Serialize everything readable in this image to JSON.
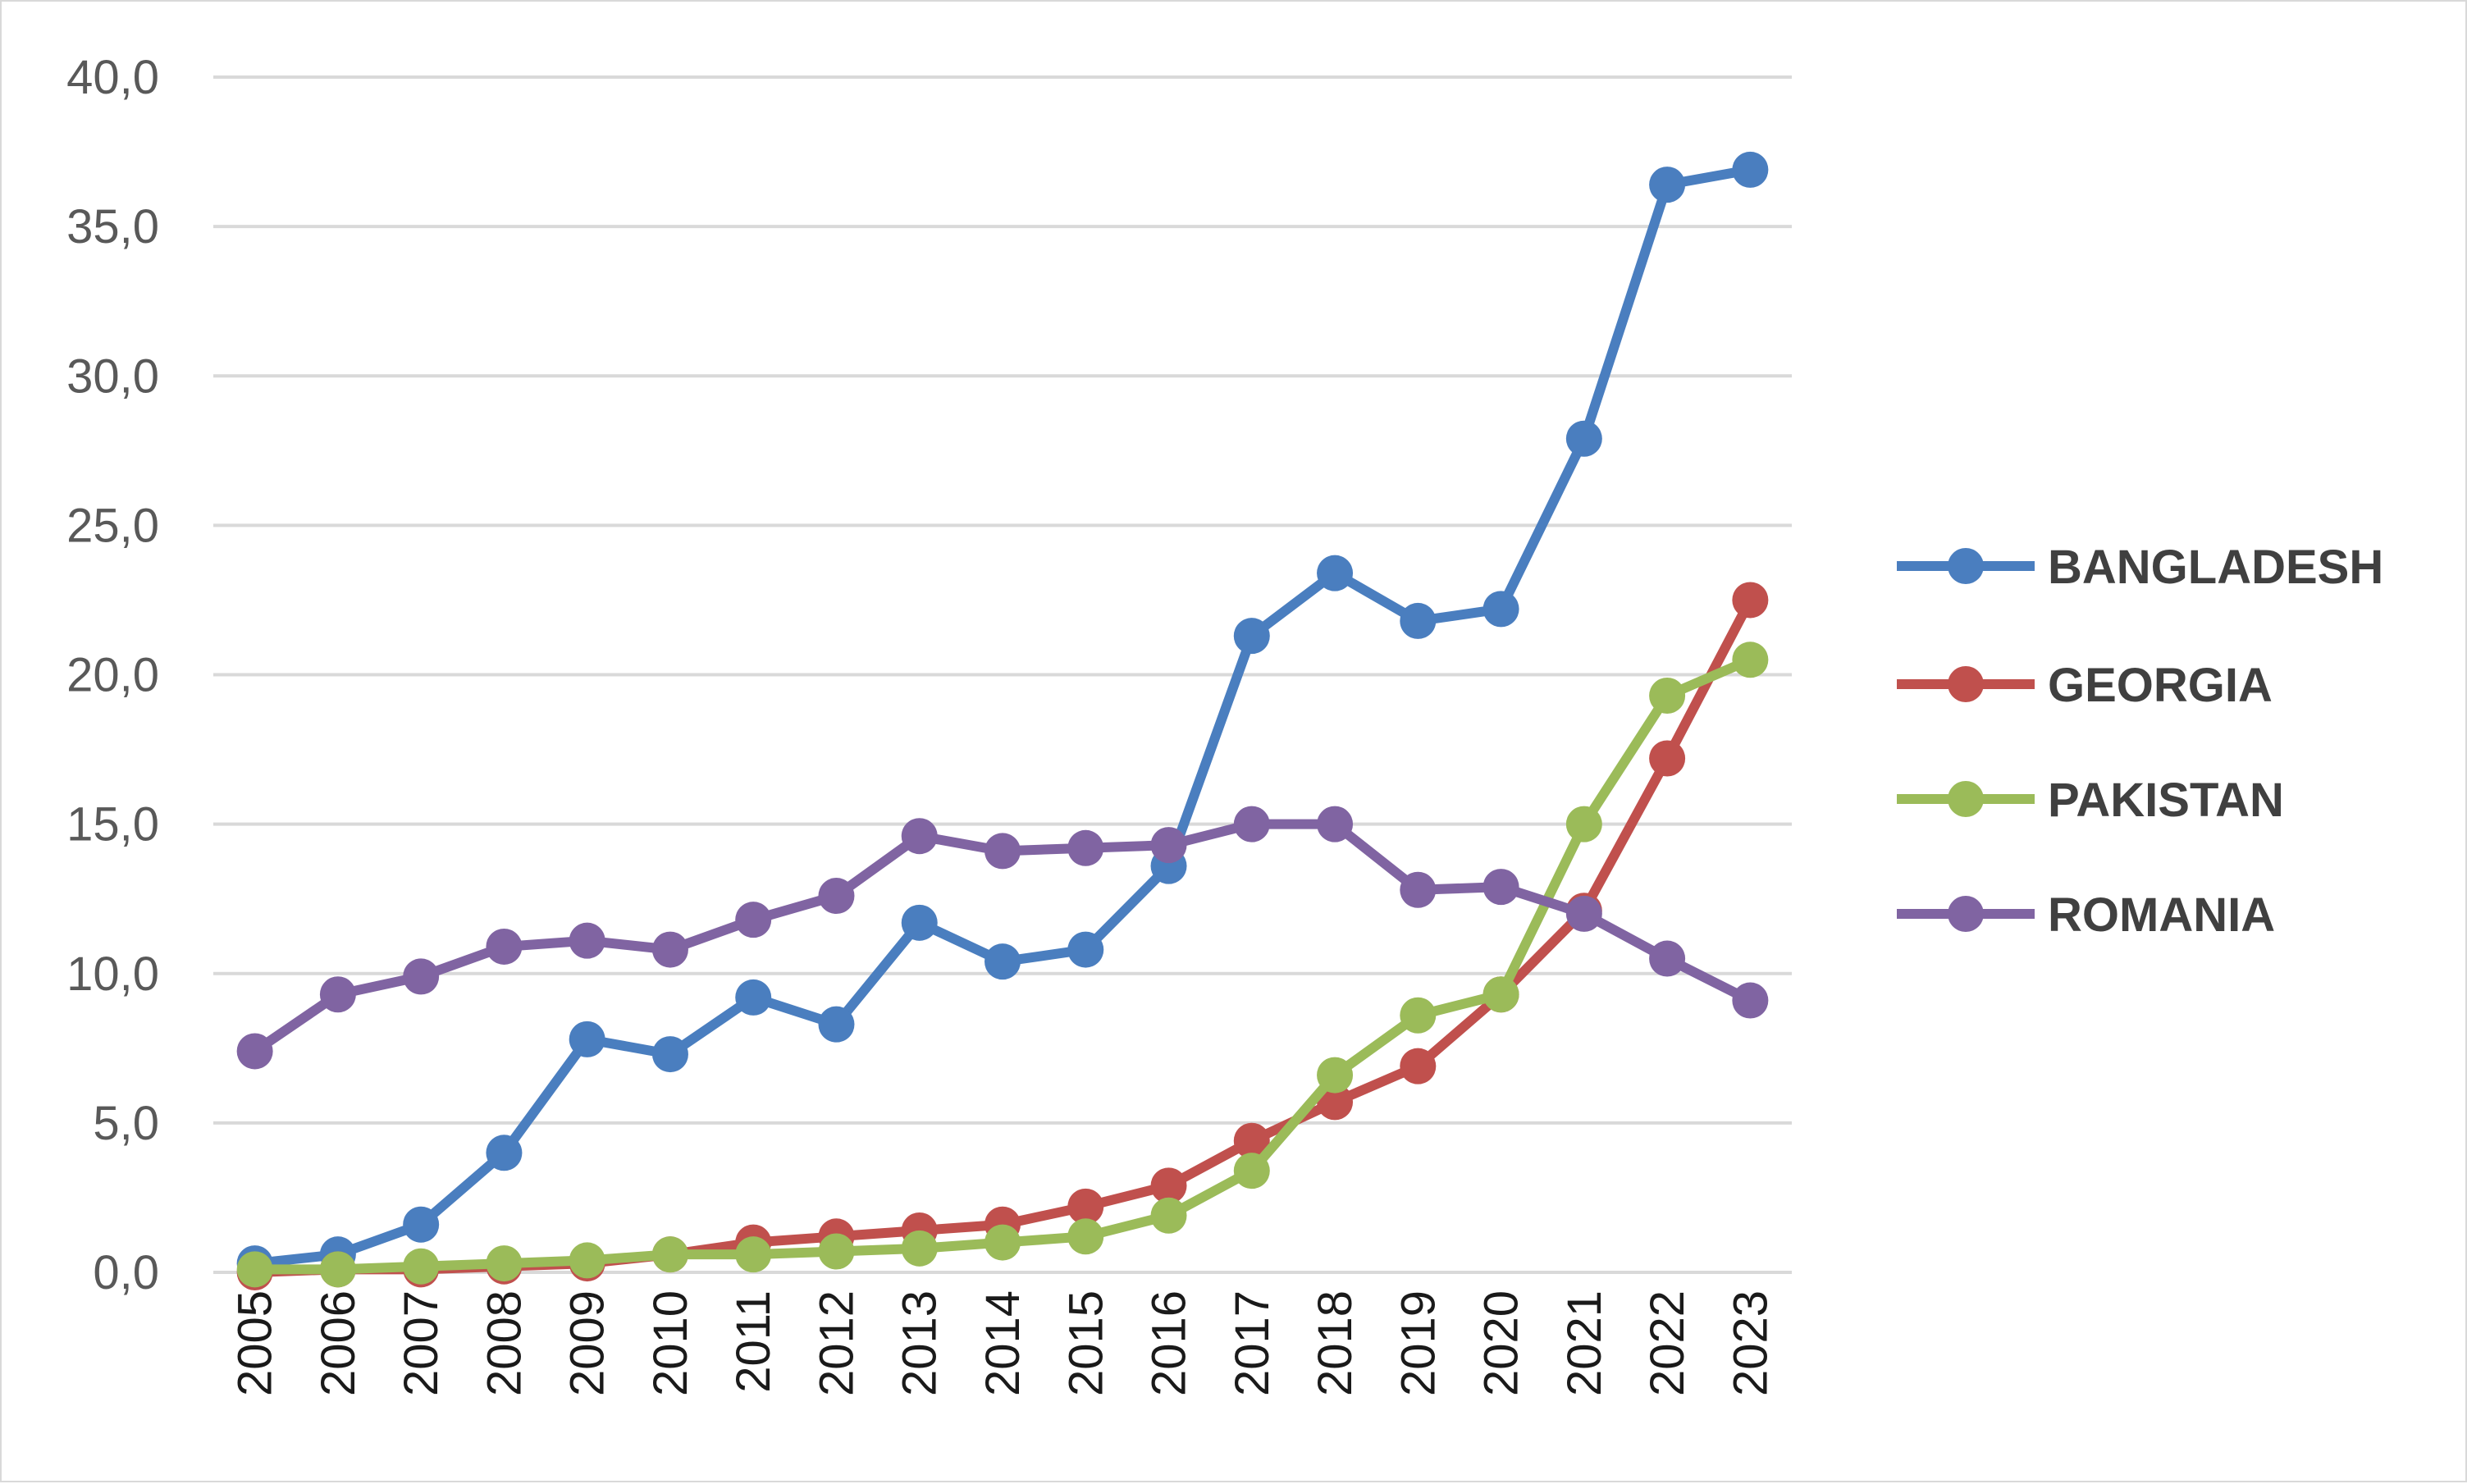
{
  "chart_data": {
    "type": "line",
    "title": "",
    "xlabel": "",
    "ylabel": "",
    "categories": [
      "2005",
      "2006",
      "2007",
      "2008",
      "2009",
      "2010",
      "2011",
      "2012",
      "2013",
      "2014",
      "2015",
      "2016",
      "2017",
      "2018",
      "2019",
      "2020",
      "2021",
      "2022",
      "2023"
    ],
    "ylim": [
      0,
      40
    ],
    "yticks": [
      "0,0",
      "5,0",
      "10,0",
      "15,0",
      "20,0",
      "25,0",
      "30,0",
      "35,0",
      "40,0"
    ],
    "grid": "horizontal",
    "legend_position": "right",
    "series": [
      {
        "name": "BANGLADESH",
        "color": "#4a7ebf",
        "values": [
          0.3,
          0.6,
          1.6,
          4.0,
          7.8,
          7.3,
          9.2,
          8.3,
          11.7,
          10.4,
          10.8,
          13.6,
          21.3,
          23.4,
          21.8,
          22.2,
          27.9,
          36.4,
          36.9
        ]
      },
      {
        "name": "GEORGIA",
        "color": "#c0504d",
        "values": [
          0.0,
          0.1,
          0.1,
          0.2,
          0.3,
          0.6,
          1.0,
          1.2,
          1.4,
          1.6,
          2.2,
          2.9,
          4.4,
          5.7,
          6.9,
          9.3,
          12.1,
          17.2,
          22.5
        ]
      },
      {
        "name": "PAKISTAN",
        "color": "#9bbb59",
        "values": [
          0.1,
          0.1,
          0.2,
          0.3,
          0.4,
          0.6,
          0.6,
          0.7,
          0.8,
          1.0,
          1.2,
          1.9,
          3.4,
          6.6,
          8.6,
          9.3,
          15.0,
          19.3,
          20.5
        ]
      },
      {
        "name": "ROMANIA",
        "color": "#8064a2",
        "values": [
          7.4,
          9.3,
          9.9,
          10.9,
          11.1,
          10.8,
          11.8,
          12.6,
          14.6,
          14.1,
          14.2,
          14.3,
          15.0,
          15.0,
          12.8,
          12.9,
          12.0,
          10.5,
          9.1
        ]
      }
    ]
  }
}
